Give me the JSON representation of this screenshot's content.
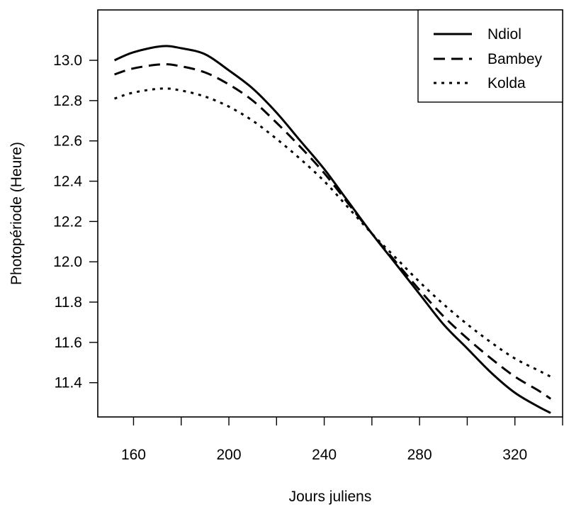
{
  "chart_data": {
    "type": "line",
    "title": "",
    "xlabel": "Jours juliens",
    "ylabel": "Photopériode (Heure)",
    "xlim": [
      145,
      340
    ],
    "ylim": [
      11.23,
      13.25
    ],
    "xticks": [
      160,
      180,
      200,
      220,
      240,
      260,
      280,
      300,
      320,
      340
    ],
    "xtick_labels": [
      "160",
      "",
      "200",
      "",
      "240",
      "",
      "280",
      "",
      "320",
      ""
    ],
    "yticks": [
      11.4,
      11.6,
      11.8,
      12.0,
      12.2,
      12.4,
      12.6,
      12.8,
      13.0
    ],
    "ytick_labels": [
      "11.4",
      "11.6",
      "11.8",
      "12.0",
      "12.2",
      "12.4",
      "12.6",
      "12.8",
      "13.0"
    ],
    "grid": false,
    "legend_position": "top-right",
    "series": [
      {
        "name": "Ndiol",
        "line_style": "solid",
        "x": [
          152,
          160,
          172,
          180,
          190,
          200,
          210,
          220,
          230,
          240,
          250,
          260,
          270,
          280,
          290,
          300,
          310,
          320,
          330,
          335
        ],
        "y": [
          13.0,
          13.04,
          13.07,
          13.06,
          13.03,
          12.95,
          12.86,
          12.74,
          12.6,
          12.46,
          12.3,
          12.14,
          11.99,
          11.84,
          11.69,
          11.57,
          11.45,
          11.35,
          11.28,
          11.25
        ]
      },
      {
        "name": "Bambey",
        "line_style": "dashed",
        "x": [
          152,
          160,
          172,
          180,
          190,
          200,
          210,
          220,
          230,
          240,
          250,
          260,
          270,
          280,
          290,
          300,
          310,
          320,
          330,
          335
        ],
        "y": [
          12.93,
          12.96,
          12.98,
          12.97,
          12.94,
          12.88,
          12.8,
          12.69,
          12.57,
          12.44,
          12.29,
          12.14,
          12.0,
          11.86,
          11.73,
          11.62,
          11.52,
          11.43,
          11.36,
          11.32
        ]
      },
      {
        "name": "Kolda",
        "line_style": "dotted",
        "x": [
          152,
          160,
          172,
          180,
          190,
          200,
          210,
          220,
          230,
          240,
          250,
          260,
          270,
          280,
          290,
          300,
          310,
          320,
          330,
          335
        ],
        "y": [
          12.81,
          12.84,
          12.86,
          12.85,
          12.82,
          12.77,
          12.7,
          12.61,
          12.51,
          12.4,
          12.27,
          12.14,
          12.02,
          11.9,
          11.79,
          11.69,
          11.6,
          11.52,
          11.46,
          11.43
        ]
      }
    ]
  }
}
